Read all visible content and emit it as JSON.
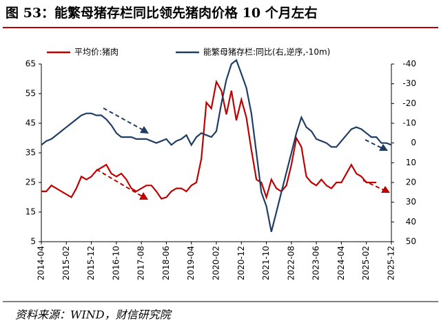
{
  "chart_data": {
    "type": "line",
    "title": "图 53：能繁母猪存栏同比领先猪肉价格 10 个月左右",
    "source": "资料来源：WIND，财信研究院",
    "categories": [
      "2014-04",
      null,
      null,
      null,
      null,
      "2015-02",
      null,
      null,
      null,
      null,
      "2015-12",
      null,
      null,
      null,
      null,
      "2016-10",
      null,
      null,
      null,
      null,
      "2017-08",
      null,
      null,
      null,
      null,
      "2018-06",
      null,
      null,
      null,
      null,
      "2019-04",
      null,
      null,
      null,
      null,
      "2020-02",
      null,
      null,
      null,
      null,
      "2020-12",
      null,
      null,
      null,
      null,
      "2021-10",
      null,
      null,
      null,
      null,
      "2022-08",
      null,
      null,
      null,
      null,
      "2023-06",
      null,
      null,
      null,
      null,
      "2024-04",
      null,
      null,
      null,
      null,
      "2025-02",
      null,
      null,
      null,
      null,
      "2025-12"
    ],
    "series": [
      {
        "name": "平均价:猪肉",
        "color": "#c00000",
        "values": [
          22,
          22,
          24,
          23,
          22,
          21,
          20,
          23,
          27,
          26,
          27,
          29,
          30,
          31,
          28,
          27,
          28,
          26,
          23,
          22,
          23,
          24,
          24,
          22,
          19.5,
          20,
          22,
          23,
          23,
          22,
          24,
          25,
          33,
          52,
          50,
          59,
          56,
          48,
          56,
          46,
          53,
          47,
          36,
          26,
          25,
          20,
          26,
          23,
          22,
          24,
          31,
          40,
          37,
          27,
          25,
          24,
          26,
          24,
          23,
          25,
          25,
          28,
          31,
          28,
          27,
          25,
          25,
          25,
          null,
          null,
          null
        ]
      },
      {
        "name": "能繁母猪存栏:同比(右,逆序,-10m)",
        "color": "#1f3d63",
        "axis": "y2",
        "values": [
          1,
          -1,
          -2,
          -4,
          -6,
          -8,
          -10,
          -12,
          -14,
          -15,
          -15,
          -14,
          -14,
          -12,
          -9,
          -5,
          -3,
          -3,
          -3,
          -2,
          -2,
          -2,
          -1,
          0,
          -1,
          -2,
          1,
          -1,
          -2,
          -4,
          1,
          -3,
          -5,
          -4,
          -3,
          -6,
          -20,
          -32,
          -40,
          -42,
          -35,
          -28,
          -15,
          5,
          25,
          32,
          45,
          35,
          25,
          15,
          5,
          -5,
          -13,
          -8,
          -6,
          -2,
          -1,
          0,
          2,
          2,
          -1,
          -4,
          -7,
          -8,
          -7,
          -5,
          -3,
          -3,
          0,
          0,
          1
        ]
      }
    ],
    "ylim": [
      5,
      65
    ],
    "yticks": [
      5,
      15,
      25,
      35,
      45,
      55,
      65
    ],
    "y2lim": [
      -40,
      50
    ],
    "y2ticks": [
      -40,
      -30,
      -20,
      -10,
      0,
      10,
      20,
      30,
      40,
      50
    ],
    "y2_inverted": true,
    "y2_color": "#c00000"
  }
}
